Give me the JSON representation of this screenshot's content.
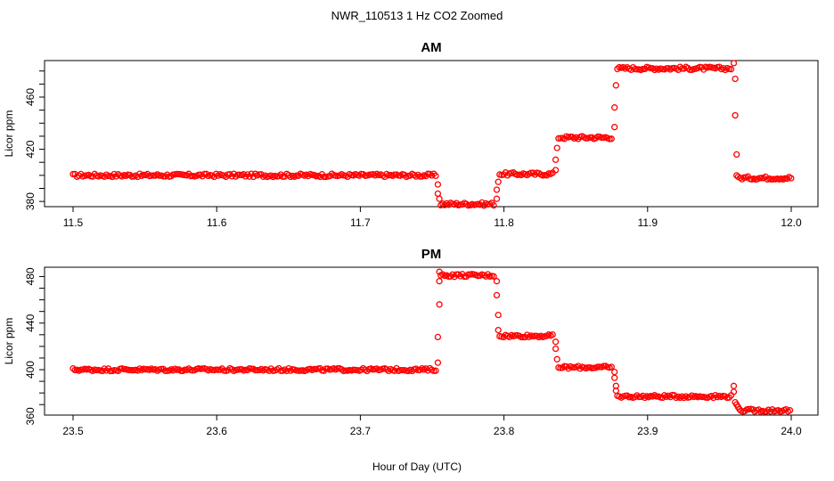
{
  "chart_title": "NWR_110513  1 Hz CO2 Zoomed",
  "x_axis_title": "Hour of Day (UTC)",
  "colors": {
    "points": "#ff0000",
    "axis": "#000000",
    "background": "#ffffff"
  },
  "chart_data": [
    {
      "type": "scatter",
      "title": "AM",
      "ylabel": "Licor ppm",
      "xlim": [
        11.5,
        12.0
      ],
      "ylim": [
        376,
        488
      ],
      "xticks": [
        11.5,
        11.6,
        11.7,
        11.8,
        11.9,
        12.0
      ],
      "xtick_labels": [
        "11.5",
        "11.6",
        "11.7",
        "11.8",
        "11.9",
        "12.0"
      ],
      "yticks": [
        380,
        420,
        460
      ],
      "ytick_labels": [
        "380",
        "420",
        "460"
      ],
      "segments": [
        {
          "x_start": 11.5,
          "x_end": 11.753,
          "y": 400
        },
        {
          "x_start": 11.756,
          "x_end": 11.794,
          "y": 378
        },
        {
          "x_start": 11.797,
          "x_end": 11.835,
          "y": 401
        },
        {
          "x_start": 11.838,
          "x_end": 11.876,
          "y": 429
        },
        {
          "x_start": 11.879,
          "x_end": 11.959,
          "y": 482
        },
        {
          "x_start": 11.963,
          "x_end": 12.0,
          "y": 398
        }
      ],
      "transitions": [
        {
          "x": 11.754,
          "y": 393
        },
        {
          "x": 11.754,
          "y": 386
        },
        {
          "x": 11.755,
          "y": 382
        },
        {
          "x": 11.795,
          "y": 382
        },
        {
          "x": 11.795,
          "y": 389
        },
        {
          "x": 11.796,
          "y": 395
        },
        {
          "x": 11.836,
          "y": 404
        },
        {
          "x": 11.836,
          "y": 412
        },
        {
          "x": 11.837,
          "y": 421
        },
        {
          "x": 11.877,
          "y": 437
        },
        {
          "x": 11.877,
          "y": 452
        },
        {
          "x": 11.878,
          "y": 469
        },
        {
          "x": 11.96,
          "y": 486
        },
        {
          "x": 11.961,
          "y": 474
        },
        {
          "x": 11.961,
          "y": 446
        },
        {
          "x": 11.962,
          "y": 416
        },
        {
          "x": 11.962,
          "y": 400
        }
      ]
    },
    {
      "type": "scatter",
      "title": "PM",
      "ylabel": "Licor ppm",
      "xlim": [
        23.5,
        24.0
      ],
      "ylim": [
        361,
        488
      ],
      "xticks": [
        23.5,
        23.6,
        23.7,
        23.8,
        23.9,
        24.0
      ],
      "xtick_labels": [
        "23.5",
        "23.6",
        "23.7",
        "23.8",
        "23.9",
        "24.0"
      ],
      "yticks": [
        360,
        400,
        440,
        480
      ],
      "ytick_labels": [
        "360",
        "400",
        "440",
        "480"
      ],
      "segments": [
        {
          "x_start": 23.5,
          "x_end": 23.753,
          "y": 400
        },
        {
          "x_start": 23.756,
          "x_end": 23.794,
          "y": 481
        },
        {
          "x_start": 23.797,
          "x_end": 23.835,
          "y": 429
        },
        {
          "x_start": 23.838,
          "x_end": 23.876,
          "y": 402
        },
        {
          "x_start": 23.879,
          "x_end": 23.959,
          "y": 377
        },
        {
          "x_start": 23.965,
          "x_end": 24.0,
          "y": 365
        }
      ],
      "transitions": [
        {
          "x": 23.754,
          "y": 406
        },
        {
          "x": 23.754,
          "y": 428
        },
        {
          "x": 23.755,
          "y": 456
        },
        {
          "x": 23.755,
          "y": 476
        },
        {
          "x": 23.755,
          "y": 484
        },
        {
          "x": 23.795,
          "y": 476
        },
        {
          "x": 23.795,
          "y": 464
        },
        {
          "x": 23.796,
          "y": 447
        },
        {
          "x": 23.796,
          "y": 434
        },
        {
          "x": 23.836,
          "y": 424
        },
        {
          "x": 23.836,
          "y": 418
        },
        {
          "x": 23.837,
          "y": 409
        },
        {
          "x": 23.877,
          "y": 398
        },
        {
          "x": 23.877,
          "y": 393
        },
        {
          "x": 23.878,
          "y": 386
        },
        {
          "x": 23.878,
          "y": 382
        },
        {
          "x": 23.96,
          "y": 386
        },
        {
          "x": 23.96,
          "y": 381
        },
        {
          "x": 23.961,
          "y": 372
        },
        {
          "x": 23.962,
          "y": 370
        },
        {
          "x": 23.963,
          "y": 368
        },
        {
          "x": 23.964,
          "y": 366
        }
      ]
    }
  ]
}
